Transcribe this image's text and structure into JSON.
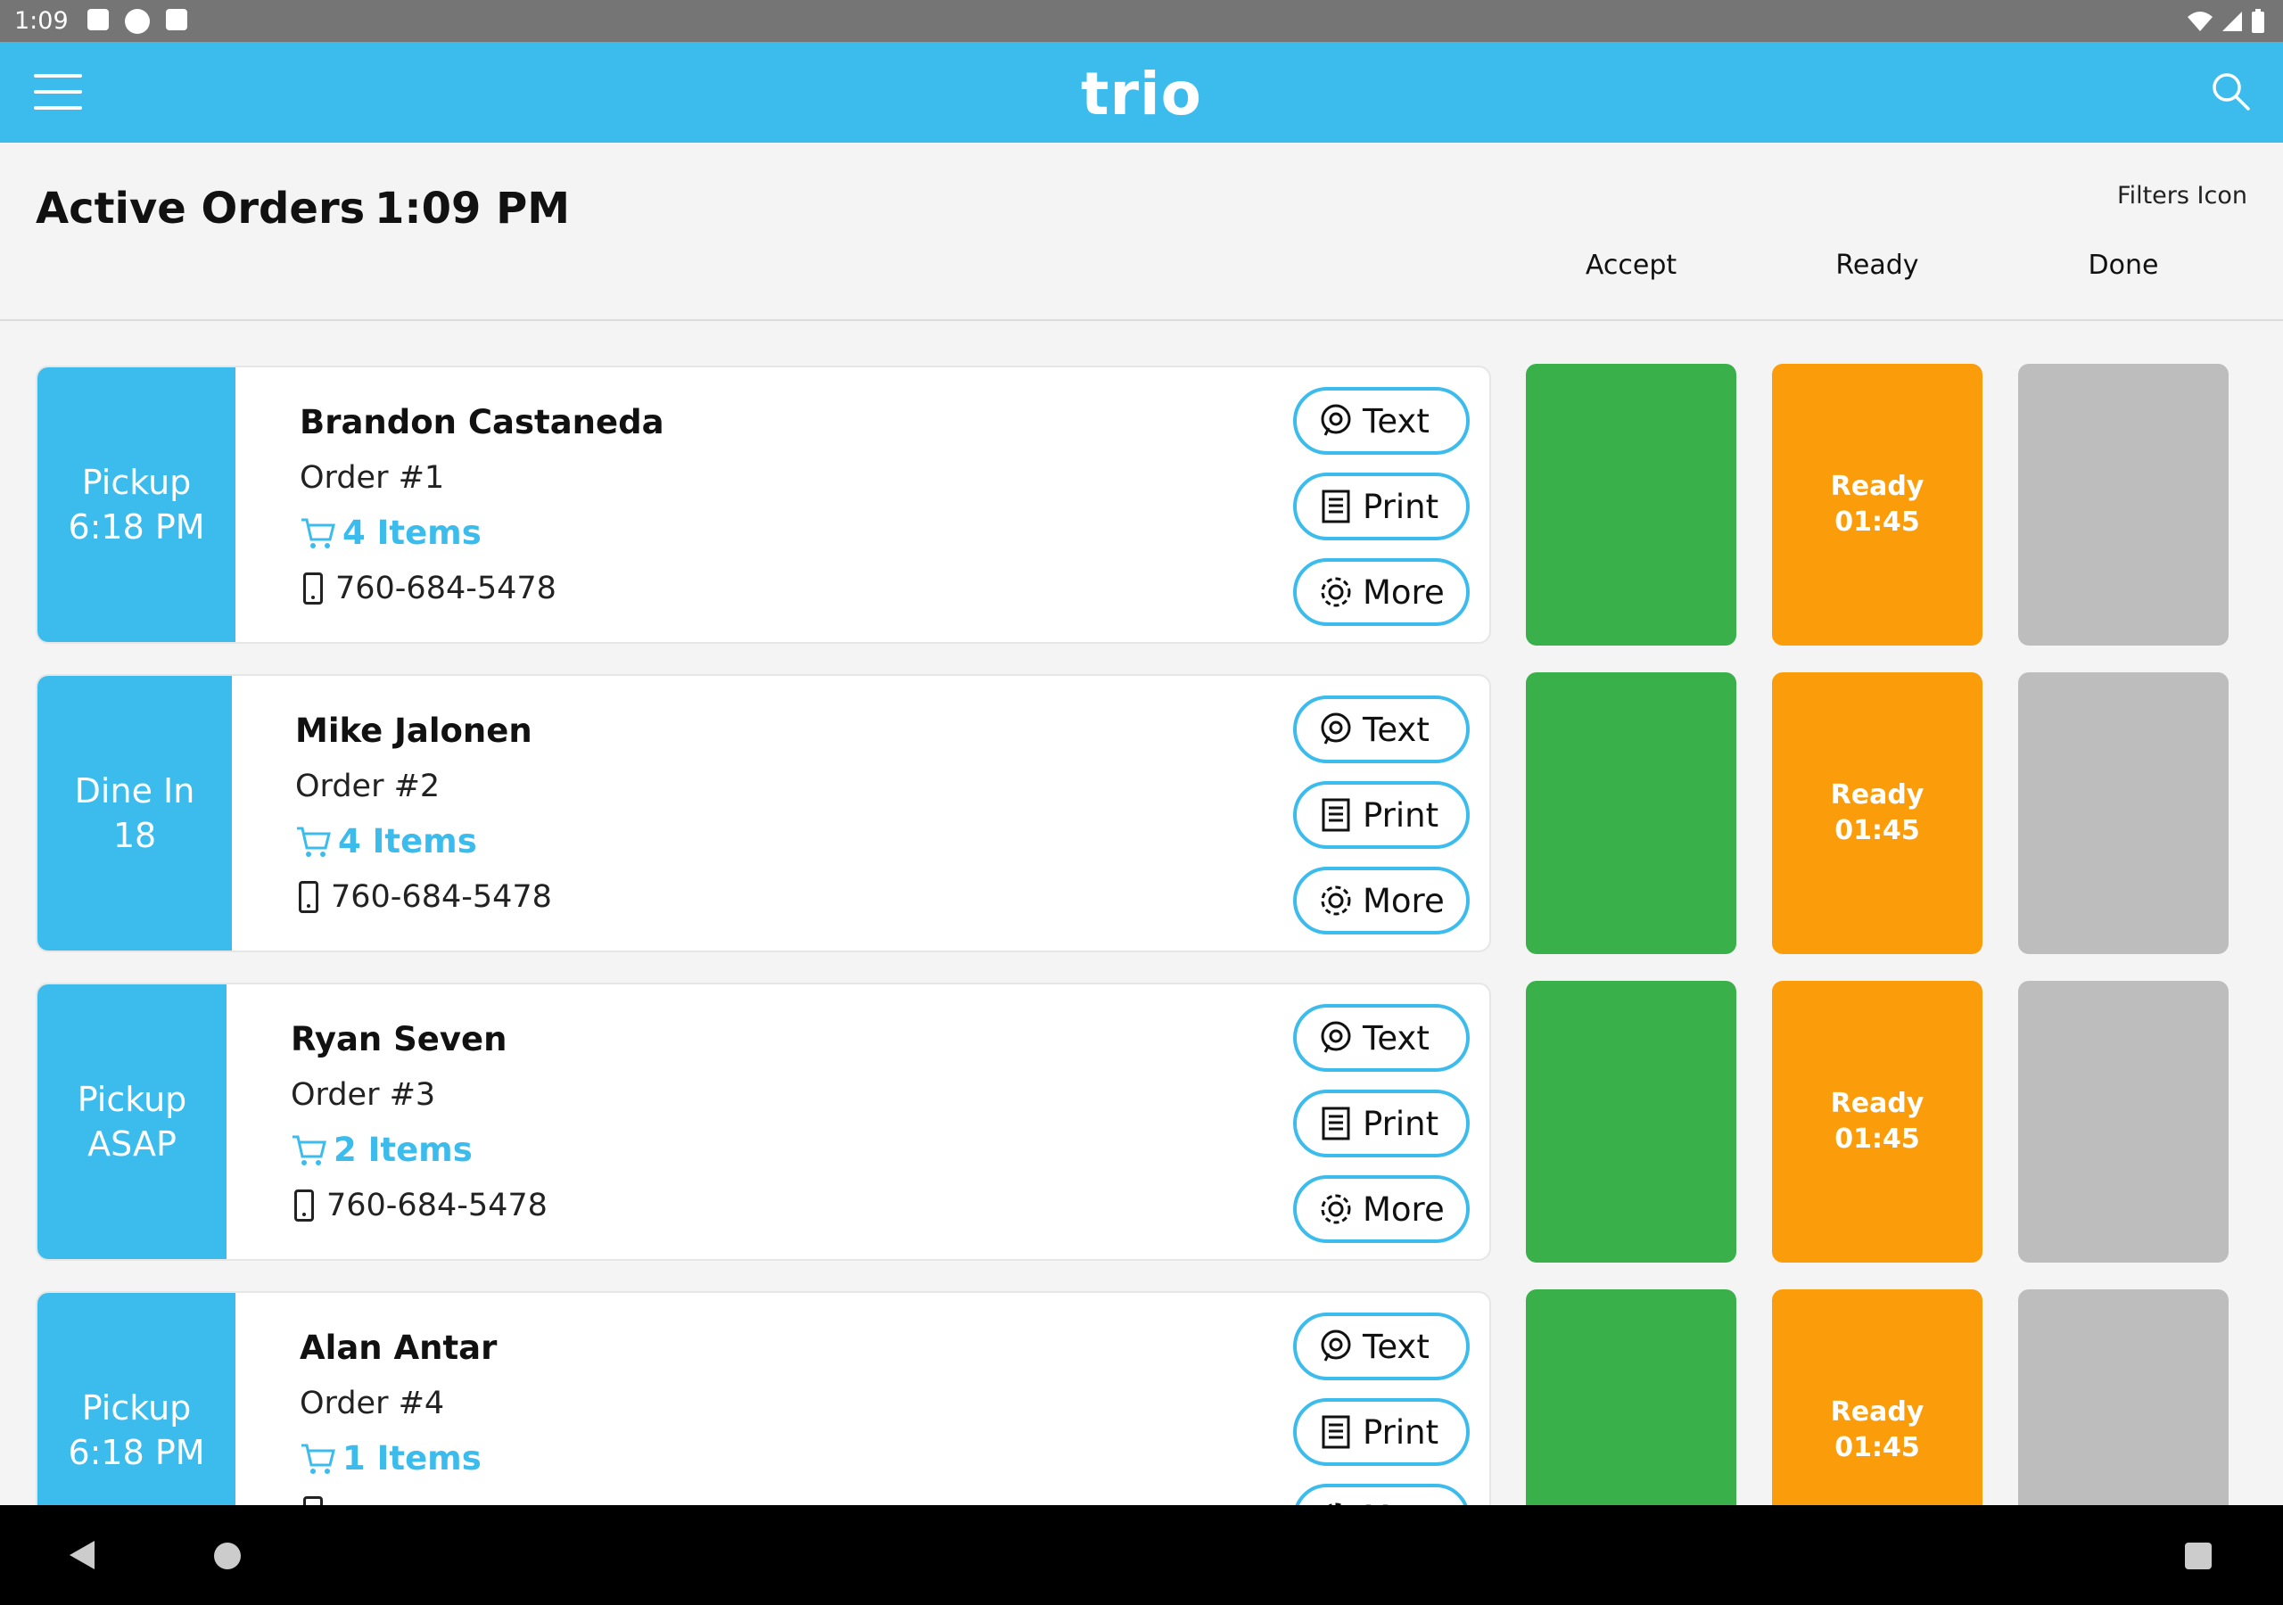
{
  "status_bar": {
    "time": "1:09"
  },
  "app_bar": {
    "logo": "trio",
    "brand_color": "#3cbcec"
  },
  "header": {
    "title": "Active Orders",
    "time": "1:09 PM",
    "filters_label": "Filters Icon",
    "columns": [
      "Accept",
      "Ready",
      "Done"
    ]
  },
  "orders": [
    {
      "type": "Pickup",
      "when": "6:18 PM",
      "name": "Brandon Castaneda",
      "order": "Order #1",
      "items": "4 Items",
      "phone": "760-684-5478",
      "ready_label": "Ready",
      "ready_time": "01:45"
    },
    {
      "type": "Dine In",
      "when": "18",
      "name": "Mike Jalonen",
      "order": "Order #2",
      "items": "4 Items",
      "phone": "760-684-5478",
      "ready_label": "Ready",
      "ready_time": "01:45"
    },
    {
      "type": "Pickup",
      "when": "ASAP",
      "name": "Ryan Seven",
      "order": "Order #3",
      "items": "2 Items",
      "phone": "760-684-5478",
      "ready_label": "Ready",
      "ready_time": "01:45"
    },
    {
      "type": "Pickup",
      "when": "6:18 PM",
      "name": "Alan Antar",
      "order": "Order #4",
      "items": "1 Items",
      "phone": "",
      "ready_label": "Ready",
      "ready_time": "01:45"
    }
  ],
  "actions": {
    "text": "Text",
    "print": "Print",
    "more": "More"
  },
  "colors": {
    "accept": "#39b04a",
    "ready": "#fb9d0a",
    "done": "#bdbdbd"
  }
}
